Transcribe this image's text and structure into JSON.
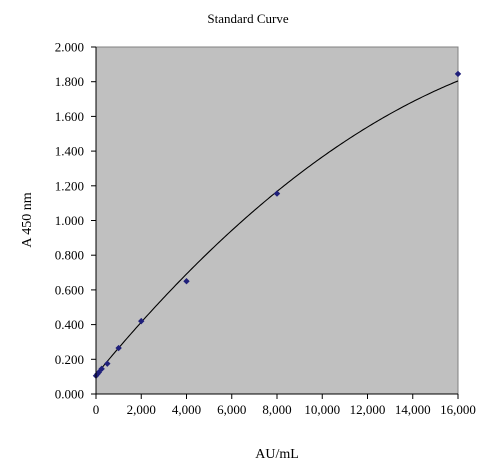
{
  "chart_data": {
    "type": "scatter",
    "title": "Standard Curve",
    "xlabel": "AU/mL",
    "ylabel": "A 450 nm",
    "xlim": [
      0,
      16000
    ],
    "ylim": [
      0,
      2.0
    ],
    "grid": false,
    "legend": "none",
    "plot_background": "#c0c0c0",
    "marker_color": "#1f1f7a",
    "curve_color": "#000000",
    "x_ticks": [
      {
        "value": 0,
        "label": "0"
      },
      {
        "value": 2000,
        "label": "2,000"
      },
      {
        "value": 4000,
        "label": "4,000"
      },
      {
        "value": 6000,
        "label": "6,000"
      },
      {
        "value": 8000,
        "label": "8,000"
      },
      {
        "value": 10000,
        "label": "10,000"
      },
      {
        "value": 12000,
        "label": "12,000"
      },
      {
        "value": 14000,
        "label": "14,000"
      },
      {
        "value": 16000,
        "label": "16,000"
      }
    ],
    "y_ticks": [
      {
        "value": 0,
        "label": "0.000"
      },
      {
        "value": 0.2,
        "label": "0.200"
      },
      {
        "value": 0.4,
        "label": "0.400"
      },
      {
        "value": 0.6,
        "label": "0.600"
      },
      {
        "value": 0.8,
        "label": "0.800"
      },
      {
        "value": 1.0,
        "label": "1.000"
      },
      {
        "value": 1.2,
        "label": "1.200"
      },
      {
        "value": 1.4,
        "label": "1.400"
      },
      {
        "value": 1.6,
        "label": "1.600"
      },
      {
        "value": 1.8,
        "label": "1.800"
      },
      {
        "value": 2.0,
        "label": "2.000"
      }
    ],
    "points": [
      {
        "x": 0,
        "y": 0.105
      },
      {
        "x": 62.5,
        "y": 0.115
      },
      {
        "x": 125,
        "y": 0.125
      },
      {
        "x": 250,
        "y": 0.145
      },
      {
        "x": 500,
        "y": 0.175
      },
      {
        "x": 1000,
        "y": 0.265
      },
      {
        "x": 2000,
        "y": 0.42
      },
      {
        "x": 4000,
        "y": 0.65
      },
      {
        "x": 8000,
        "y": 1.155
      },
      {
        "x": 16000,
        "y": 1.845
      }
    ],
    "fit_curve": {
      "type": "polynomial-2",
      "coefficients": [
        0.11,
        0.0001585,
        -3.2875e-09
      ]
    }
  }
}
